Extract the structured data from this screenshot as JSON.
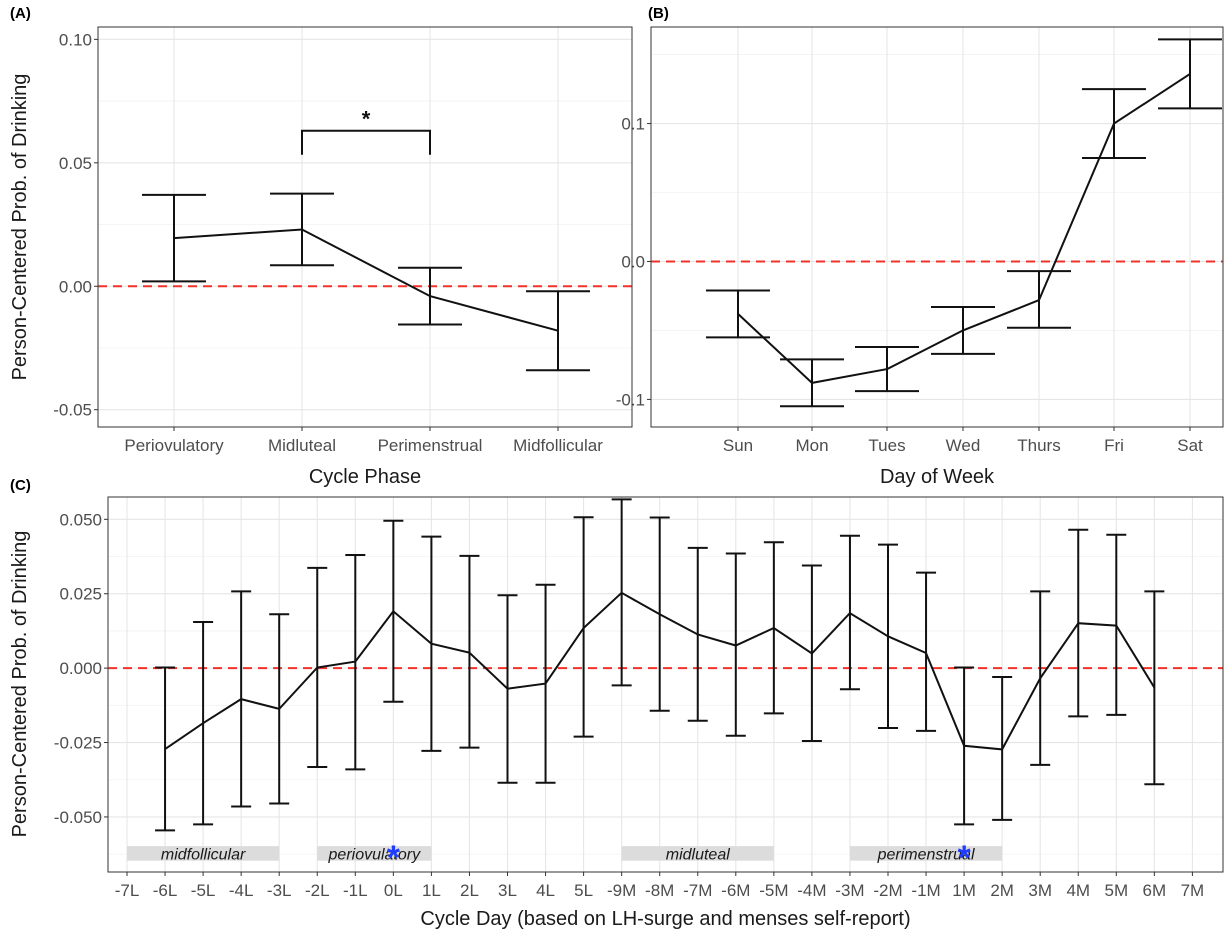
{
  "chart_data": [
    {
      "panel": "(A)",
      "type": "line",
      "xlabel": "Cycle Phase",
      "ylabel": "Person-Centered Prob. of Drinking",
      "categories": [
        "Periovulatory",
        "Midluteal",
        "Perimenstrual",
        "Midfollicular"
      ],
      "values": [
        0.0195,
        0.023,
        -0.004,
        -0.018
      ],
      "lower": [
        0.002,
        0.0085,
        -0.0155,
        -0.034
      ],
      "upper": [
        0.037,
        0.0375,
        0.0075,
        -0.002
      ],
      "ylim": [
        -0.057,
        0.105
      ],
      "yticks": [
        -0.05,
        0.0,
        0.05,
        0.1
      ],
      "ytick_labels": [
        "-0.05",
        "0.00",
        "0.05",
        "0.10"
      ],
      "reference_line": 0,
      "significance": {
        "from": "Midluteal",
        "to": "Perimenstrual",
        "label": "*",
        "y": 0.063
      },
      "grid": true
    },
    {
      "panel": "(B)",
      "type": "line",
      "xlabel": "Day of Week",
      "ylabel": "",
      "categories": [
        "Sun",
        "Mon",
        "Tues",
        "Wed",
        "Thurs",
        "Fri",
        "Sat"
      ],
      "values": [
        -0.038,
        -0.088,
        -0.078,
        -0.05,
        -0.028,
        0.1,
        0.136
      ],
      "lower": [
        -0.055,
        -0.105,
        -0.094,
        -0.067,
        -0.048,
        0.075,
        0.111
      ],
      "upper": [
        -0.021,
        -0.071,
        -0.062,
        -0.033,
        -0.007,
        0.125,
        0.161
      ],
      "ylim": [
        -0.12,
        0.17
      ],
      "yticks": [
        -0.1,
        0.0,
        0.1
      ],
      "ytick_labels": [
        "-0.1",
        "0.0",
        "0.1"
      ],
      "reference_line": 0,
      "grid": true
    },
    {
      "panel": "(C)",
      "type": "line",
      "xlabel": "Cycle Day (based on LH-surge and menses self-report)",
      "ylabel": "Person-Centered Prob. of Drinking",
      "categories": [
        "-7L",
        "-6L",
        "-5L",
        "-4L",
        "-3L",
        "-2L",
        "-1L",
        "0L",
        "1L",
        "2L",
        "3L",
        "4L",
        "5L",
        "-9M",
        "-8M",
        "-7M",
        "-6M",
        "-5M",
        "-4M",
        "-3M",
        "-2M",
        "-1M",
        "1M",
        "2M",
        "3M",
        "4M",
        "5M",
        "6M",
        "7M"
      ],
      "values": [
        null,
        -0.0272,
        -0.0185,
        -0.0104,
        -0.0137,
        0.0002,
        0.0022,
        0.0191,
        0.0082,
        0.0052,
        -0.0069,
        -0.0052,
        0.0135,
        0.0253,
        0.0181,
        0.0113,
        0.0076,
        0.0135,
        0.0049,
        0.0185,
        0.0107,
        0.0051,
        -0.0261,
        -0.0273,
        -0.0034,
        0.0151,
        0.0143,
        -0.0065,
        null
      ],
      "lower": [
        null,
        -0.0545,
        -0.0525,
        -0.0465,
        -0.0455,
        -0.0332,
        -0.034,
        -0.0113,
        -0.0278,
        -0.0267,
        -0.0385,
        -0.0385,
        -0.023,
        -0.0058,
        -0.0143,
        -0.0177,
        -0.0227,
        -0.0152,
        -0.0245,
        -0.0071,
        -0.0201,
        -0.0211,
        -0.0525,
        -0.051,
        -0.0325,
        -0.0162,
        -0.0157,
        -0.039,
        null
      ],
      "upper": [
        null,
        0.0002,
        0.0155,
        0.0258,
        0.0181,
        0.0337,
        0.038,
        0.0495,
        0.0442,
        0.0377,
        0.0245,
        0.028,
        0.0507,
        0.0567,
        0.0506,
        0.0404,
        0.0385,
        0.0423,
        0.0345,
        0.0445,
        0.0415,
        0.0321,
        0.0002,
        -0.003,
        0.0258,
        0.0465,
        0.0448,
        0.0258,
        null
      ],
      "ylim": [
        -0.0685,
        0.0575
      ],
      "yticks": [
        -0.05,
        -0.025,
        0.0,
        0.025,
        0.05
      ],
      "ytick_labels": [
        "-0.050",
        "-0.025",
        "0.000",
        "0.025",
        "0.050"
      ],
      "reference_line": 0,
      "phases": [
        {
          "label": "midfollicular",
          "from": "-7L",
          "to": "-3L"
        },
        {
          "label": "periovulatory",
          "from": "-2L",
          "to": "1L"
        },
        {
          "label": "midluteal",
          "from": "-9M",
          "to": "-5M"
        },
        {
          "label": "perimenstrual",
          "from": "-3M",
          "to": "2M"
        }
      ],
      "markers": [
        {
          "at": "0L",
          "label": "*",
          "color": "#1f3dff"
        },
        {
          "at": "1M",
          "label": "*",
          "color": "#1f3dff"
        }
      ],
      "grid": true
    }
  ],
  "colors": {
    "reference_line": "#f2322a",
    "series": "#111111",
    "phase_box": "#dcdcdc",
    "marker": "#1f3dff"
  }
}
